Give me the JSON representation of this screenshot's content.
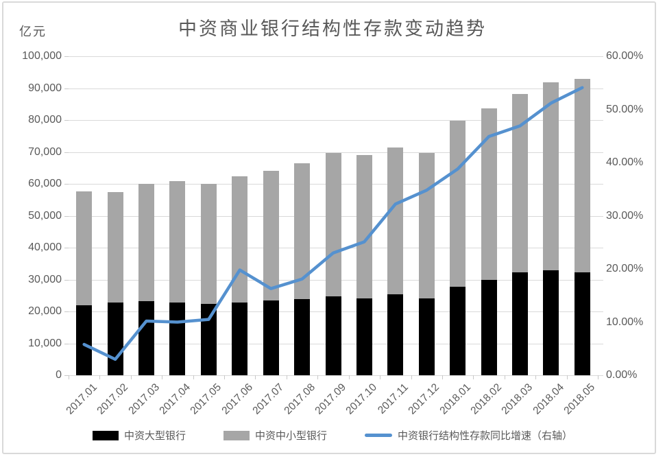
{
  "title": "中资商业银行结构性存款变动趋势",
  "left_axis_unit": "亿元",
  "colors": {
    "large_banks": "#000000",
    "small_medium_banks": "#a6a6a6",
    "growth_line": "#5591cf",
    "grid": "#d9d9d9",
    "text": "#595959",
    "frame_border": "#d9d9d9"
  },
  "chart_data": {
    "type": "combo: stacked-bar + line",
    "title": "中资商业银行结构性存款变动趋势",
    "categories": [
      "2017.01",
      "2017.02",
      "2017.03",
      "2017.04",
      "2017.05",
      "2017.06",
      "2017.07",
      "2017.08",
      "2017.09",
      "2017.10",
      "2017.11",
      "2017.12",
      "2018.01",
      "2018.02",
      "2018.03",
      "2018.04",
      "2018.05"
    ],
    "series": [
      {
        "name": "中资大型银行",
        "type": "bar",
        "stack": "deposits",
        "axis": "left",
        "color_key": "large_banks",
        "values": [
          22000,
          22700,
          23300,
          22800,
          22400,
          22900,
          23400,
          23900,
          24700,
          24100,
          25400,
          24000,
          27800,
          29900,
          32300,
          32900,
          32200
        ]
      },
      {
        "name": "中资中小型银行",
        "type": "bar",
        "stack": "deposits",
        "axis": "left",
        "color_key": "small_medium_banks",
        "values": [
          35600,
          34800,
          36600,
          38000,
          37600,
          39400,
          40600,
          42600,
          45000,
          45000,
          46000,
          45700,
          51900,
          53700,
          55800,
          58900,
          60700
        ]
      },
      {
        "name": "中资银行结构性存款同比增速（右轴）",
        "type": "line",
        "axis": "right",
        "color_key": "growth_line",
        "values_percent": [
          5.8,
          3.0,
          10.2,
          10.0,
          10.5,
          19.8,
          16.3,
          18.1,
          23.0,
          25.1,
          32.2,
          34.8,
          38.8,
          44.9,
          46.9,
          51.2,
          54.1
        ]
      }
    ],
    "left_axis": {
      "unit": "亿元",
      "min": 0,
      "max": 100000,
      "step": 10000,
      "tick_labels": [
        "0",
        "10,000",
        "20,000",
        "30,000",
        "40,000",
        "50,000",
        "60,000",
        "70,000",
        "80,000",
        "90,000",
        "100,000"
      ]
    },
    "right_axis": {
      "min": 0,
      "max": 60,
      "step": 10,
      "tick_labels": [
        "0.00%",
        "10.00%",
        "20.00%",
        "30.00%",
        "40.00%",
        "50.00%",
        "60.00%"
      ]
    },
    "grid": true,
    "legend_position": "bottom"
  }
}
